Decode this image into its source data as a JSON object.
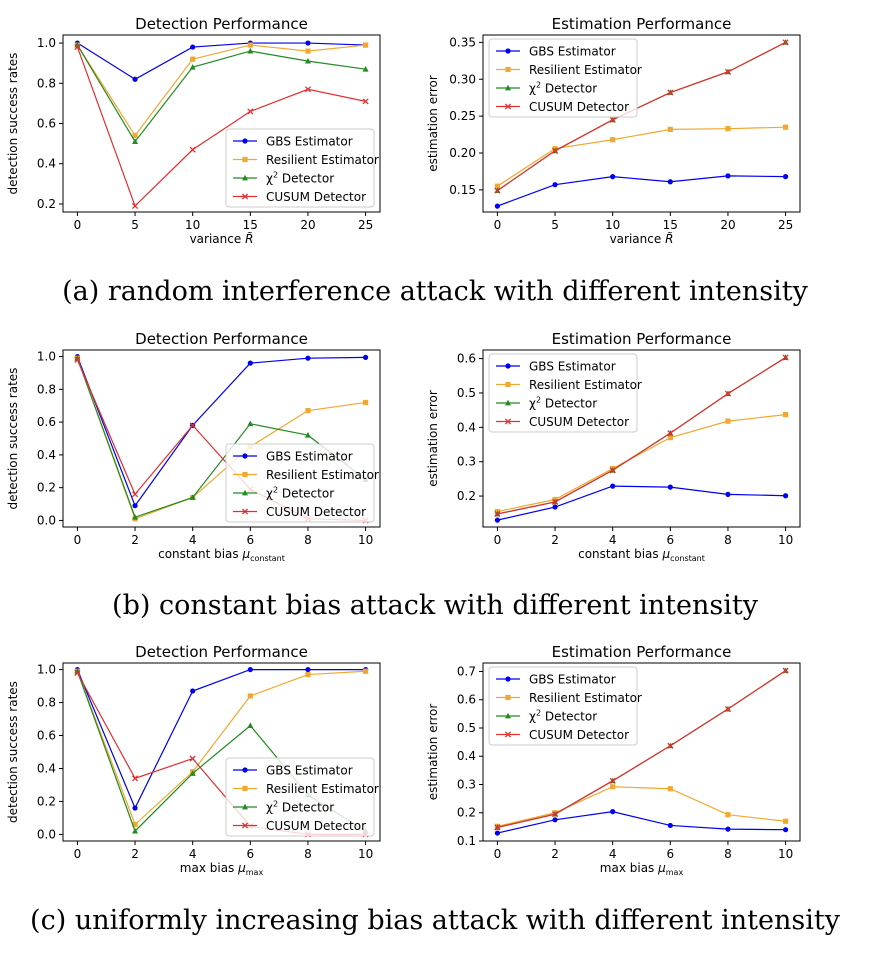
{
  "captions": {
    "a": "(a) random interference attack with different intensity",
    "b": "(b) constant bias attack with different intensity",
    "c": "(c) uniformly increasing bias attack with different intensity"
  },
  "colors": {
    "GBS Estimator": "#0000ee",
    "Resilient Estimator": "#f0a830",
    "chi2 Detector": "#228b22",
    "CUSUM Detector": "#e03030"
  },
  "chart_data": [
    {
      "type": "line",
      "title": "Detection Performance",
      "xlabel": "variance",
      "xlabel_symbol": "R̃",
      "ylabel": "detection success rates",
      "x": [
        0,
        5,
        10,
        15,
        20,
        25
      ],
      "xticks": [
        "0",
        "5",
        "10",
        "15",
        "20",
        "25"
      ],
      "yticks": [
        0.2,
        0.4,
        0.6,
        0.8,
        1.0
      ],
      "ylim": [
        0.16,
        1.04
      ],
      "legend": "lower-right",
      "series": [
        {
          "name": "GBS Estimator",
          "marker": "circle",
          "values": [
            1.0,
            0.82,
            0.98,
            1.0,
            1.0,
            0.99
          ]
        },
        {
          "name": "Resilient Estimator",
          "marker": "square",
          "values": [
            0.99,
            0.54,
            0.92,
            0.99,
            0.96,
            0.99
          ]
        },
        {
          "name": "χ2 Detector",
          "marker": "triangle",
          "values": [
            0.99,
            0.51,
            0.88,
            0.96,
            0.91,
            0.87
          ]
        },
        {
          "name": "CUSUM Detector",
          "marker": "x",
          "values": [
            0.98,
            0.19,
            0.47,
            0.66,
            0.77,
            0.71
          ]
        }
      ]
    },
    {
      "type": "line",
      "title": "Estimation Performance",
      "xlabel": "variance",
      "xlabel_symbol": "R̃",
      "ylabel": "estimation error",
      "x": [
        0,
        5,
        10,
        15,
        20,
        25
      ],
      "xticks": [
        "0",
        "5",
        "10",
        "15",
        "20",
        "25"
      ],
      "yticks": [
        0.15,
        0.2,
        0.25,
        0.3,
        0.35
      ],
      "ylim": [
        0.12,
        0.36
      ],
      "legend": "top-left",
      "series": [
        {
          "name": "GBS Estimator",
          "marker": "circle",
          "values": [
            0.128,
            0.157,
            0.168,
            0.161,
            0.169,
            0.168
          ]
        },
        {
          "name": "Resilient Estimator",
          "marker": "square",
          "values": [
            0.155,
            0.206,
            0.218,
            0.232,
            0.233,
            0.235
          ]
        },
        {
          "name": "χ2 Detector",
          "marker": "triangle",
          "values": [
            0.149,
            0.203,
            0.245,
            0.282,
            0.31,
            0.35
          ]
        },
        {
          "name": "CUSUM Detector",
          "marker": "x",
          "values": [
            0.149,
            0.203,
            0.245,
            0.282,
            0.31,
            0.35
          ]
        }
      ]
    },
    {
      "type": "line",
      "title": "Detection Performance",
      "xlabel": "constant bias",
      "xlabel_symbol": "μ",
      "xlabel_sub": "constant",
      "ylabel": "detection success rates",
      "x": [
        0,
        2,
        4,
        6,
        8,
        10
      ],
      "xticks": [
        "0",
        "2",
        "4",
        "6",
        "8",
        "10"
      ],
      "yticks": [
        0.0,
        0.2,
        0.4,
        0.6,
        0.8,
        1.0
      ],
      "ylim": [
        -0.04,
        1.04
      ],
      "legend": "lower-right",
      "series": [
        {
          "name": "GBS Estimator",
          "marker": "circle",
          "values": [
            1.0,
            0.09,
            0.58,
            0.96,
            0.99,
            0.995
          ]
        },
        {
          "name": "Resilient Estimator",
          "marker": "square",
          "values": [
            0.99,
            0.01,
            0.14,
            0.45,
            0.67,
            0.72
          ]
        },
        {
          "name": "χ2 Detector",
          "marker": "triangle",
          "values": [
            0.99,
            0.02,
            0.14,
            0.59,
            0.52,
            0.25
          ]
        },
        {
          "name": "CUSUM Detector",
          "marker": "x",
          "values": [
            0.98,
            0.16,
            0.58,
            0.19,
            0.01,
            0.0
          ]
        }
      ]
    },
    {
      "type": "line",
      "title": "Estimation Performance",
      "xlabel": "constant bias",
      "xlabel_symbol": "μ",
      "xlabel_sub": "constant",
      "ylabel": "estimation error",
      "x": [
        0,
        2,
        4,
        6,
        8,
        10
      ],
      "xticks": [
        "0",
        "2",
        "4",
        "6",
        "8",
        "10"
      ],
      "yticks": [
        0.2,
        0.3,
        0.4,
        0.5,
        0.6
      ],
      "ylim": [
        0.11,
        0.625
      ],
      "legend": "top-left",
      "series": [
        {
          "name": "GBS Estimator",
          "marker": "circle",
          "values": [
            0.13,
            0.168,
            0.229,
            0.226,
            0.205,
            0.201
          ]
        },
        {
          "name": "Resilient Estimator",
          "marker": "square",
          "values": [
            0.155,
            0.19,
            0.28,
            0.37,
            0.418,
            0.437
          ]
        },
        {
          "name": "χ2 Detector",
          "marker": "triangle",
          "values": [
            0.148,
            0.183,
            0.275,
            0.383,
            0.498,
            0.603
          ]
        },
        {
          "name": "CUSUM Detector",
          "marker": "x",
          "values": [
            0.148,
            0.183,
            0.275,
            0.383,
            0.498,
            0.603
          ]
        }
      ]
    },
    {
      "type": "line",
      "title": "Detection Performance",
      "xlabel": "max bias",
      "xlabel_symbol": "μ",
      "xlabel_sub": "max",
      "ylabel": "detection success rates",
      "x": [
        0,
        2,
        4,
        6,
        8,
        10
      ],
      "xticks": [
        "0",
        "2",
        "4",
        "6",
        "8",
        "10"
      ],
      "yticks": [
        0.0,
        0.2,
        0.4,
        0.6,
        0.8,
        1.0
      ],
      "ylim": [
        -0.04,
        1.04
      ],
      "legend": "lower-right",
      "series": [
        {
          "name": "GBS Estimator",
          "marker": "circle",
          "values": [
            1.0,
            0.16,
            0.87,
            1.0,
            1.0,
            1.0
          ]
        },
        {
          "name": "Resilient Estimator",
          "marker": "square",
          "values": [
            0.99,
            0.06,
            0.38,
            0.84,
            0.97,
            0.99
          ]
        },
        {
          "name": "χ2 Detector",
          "marker": "triangle",
          "values": [
            0.99,
            0.02,
            0.37,
            0.66,
            0.24,
            0.02
          ]
        },
        {
          "name": "CUSUM Detector",
          "marker": "x",
          "values": [
            0.98,
            0.34,
            0.46,
            0.05,
            0.0,
            0.0
          ]
        }
      ]
    },
    {
      "type": "line",
      "title": "Estimation Performance",
      "xlabel": "max bias",
      "xlabel_symbol": "μ",
      "xlabel_sub": "max",
      "ylabel": "estimation error",
      "x": [
        0,
        2,
        4,
        6,
        8,
        10
      ],
      "xticks": [
        "0",
        "2",
        "4",
        "6",
        "8",
        "10"
      ],
      "yticks": [
        0.1,
        0.2,
        0.3,
        0.4,
        0.5,
        0.6,
        0.7
      ],
      "ylim": [
        0.1,
        0.73
      ],
      "legend": "top-left",
      "series": [
        {
          "name": "GBS Estimator",
          "marker": "circle",
          "values": [
            0.128,
            0.175,
            0.204,
            0.155,
            0.142,
            0.14
          ]
        },
        {
          "name": "Resilient Estimator",
          "marker": "square",
          "values": [
            0.152,
            0.2,
            0.292,
            0.285,
            0.193,
            0.17
          ]
        },
        {
          "name": "χ2 Detector",
          "marker": "triangle",
          "values": [
            0.148,
            0.195,
            0.313,
            0.437,
            0.567,
            0.703
          ]
        },
        {
          "name": "CUSUM Detector",
          "marker": "x",
          "values": [
            0.148,
            0.195,
            0.313,
            0.437,
            0.567,
            0.703
          ]
        }
      ]
    }
  ]
}
